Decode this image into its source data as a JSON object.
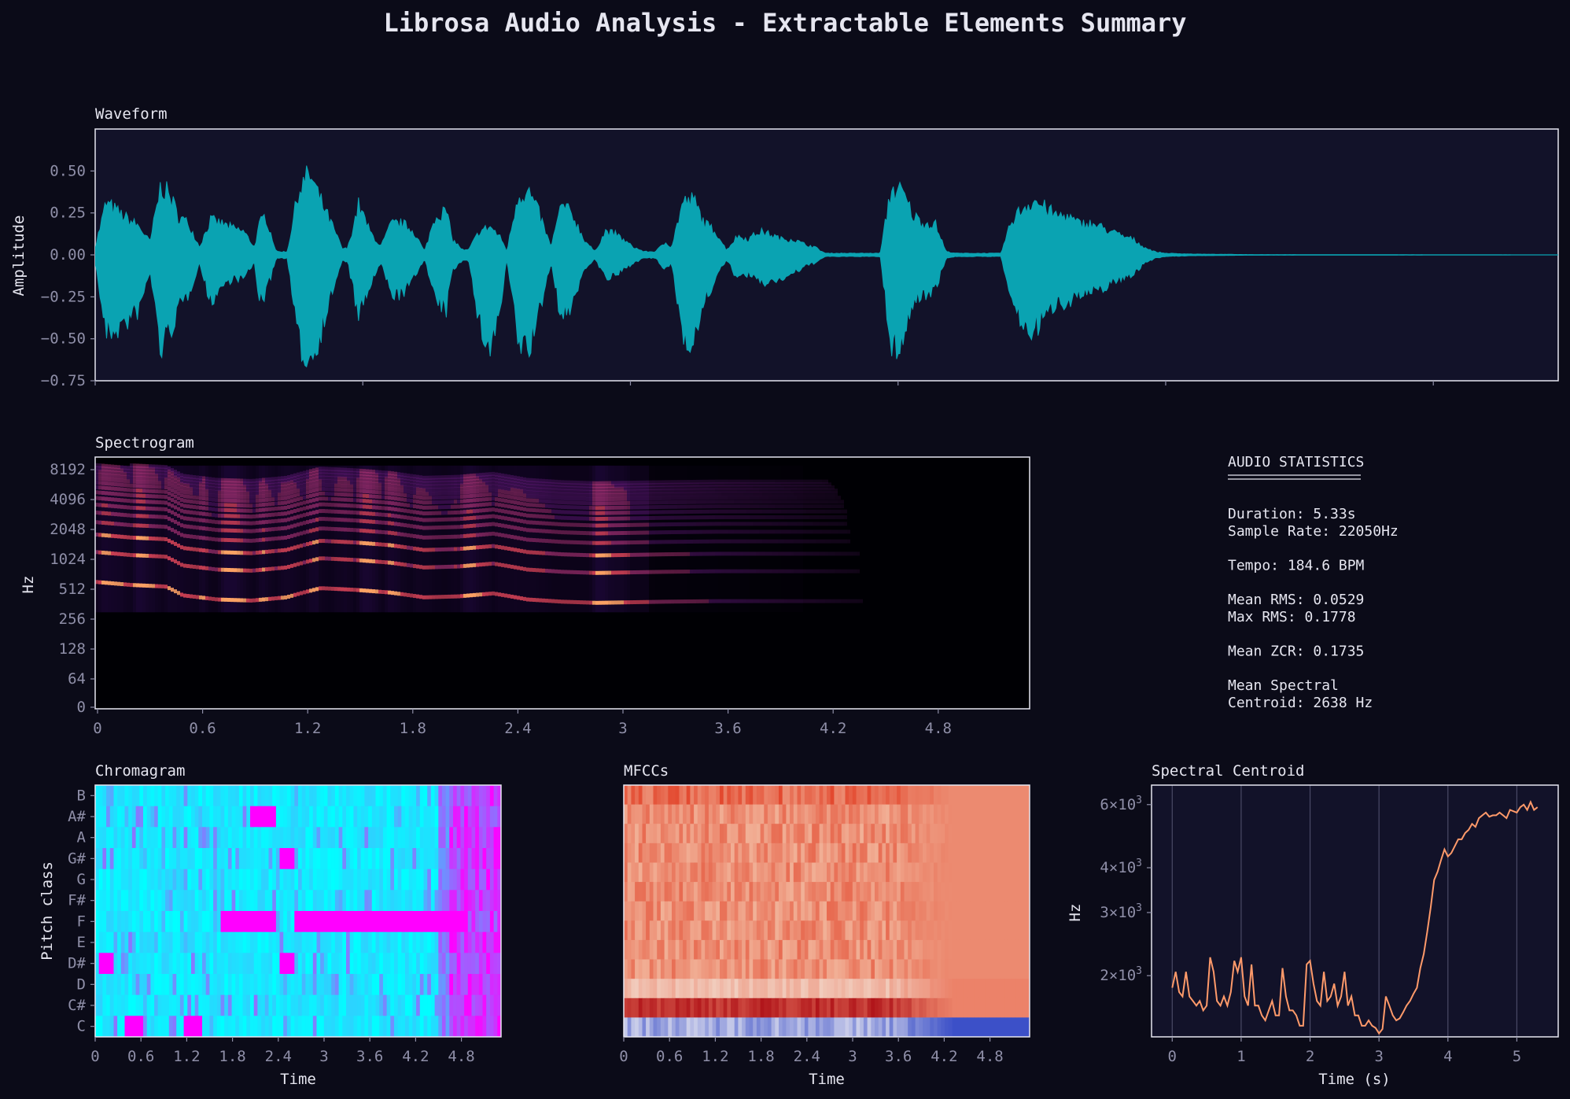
{
  "title": "Librosa Audio Analysis - Extractable Elements Summary",
  "colors": {
    "background": "#0b0b18",
    "panel": "#121229",
    "text": "#e6e6f0",
    "tick_text": "#8f8fa8",
    "waveform": "#0aa3b2",
    "centroid_line": "#ff9a6a"
  },
  "statistics": {
    "heading": "AUDIO STATISTICS",
    "lines": [
      "Duration: 5.33s",
      "Sample Rate: 22050Hz",
      "",
      "Tempo: 184.6 BPM",
      "",
      "Mean RMS: 0.0529",
      "Max RMS: 0.1778",
      "",
      "Mean ZCR: 0.1735",
      "",
      "Mean Spectral",
      "Centroid: 2638 Hz"
    ]
  },
  "chart_data": [
    {
      "type": "area",
      "title": "Waveform",
      "xlabel": "",
      "ylabel": "Amplitude",
      "xlim": [
        0,
        5.33
      ],
      "ylim": [
        -0.75,
        0.75
      ],
      "yticks": [
        "0.50",
        "0.25",
        "0.00",
        "−0.25",
        "−0.50",
        "−0.75"
      ],
      "ytick_values": [
        0.5,
        0.25,
        0,
        -0.25,
        -0.5,
        -0.75
      ],
      "xtick_values": [
        0,
        0.975,
        1.95,
        2.925,
        3.9,
        4.875
      ],
      "envelope": {
        "t": [
          0,
          0.04,
          0.1,
          0.16,
          0.2,
          0.24,
          0.28,
          0.3,
          0.34,
          0.38,
          0.42,
          0.46,
          0.5,
          0.54,
          0.58,
          0.6,
          0.62,
          0.66,
          0.7,
          0.74,
          0.78,
          0.82,
          0.86,
          0.9,
          0.92,
          0.96,
          1.0,
          1.04,
          1.08,
          1.12,
          1.16,
          1.2,
          1.24,
          1.28,
          1.3,
          1.34,
          1.36,
          1.4,
          1.44,
          1.48,
          1.5,
          1.54,
          1.58,
          1.62,
          1.66,
          1.7,
          1.74,
          1.78,
          1.82,
          1.86,
          1.9,
          1.92,
          1.96,
          2.0,
          2.04,
          2.08,
          2.1,
          2.14,
          2.18,
          2.22,
          2.26,
          2.3,
          2.34,
          2.38,
          2.42,
          2.46,
          2.5,
          2.54,
          2.58,
          2.62,
          2.66,
          2.7,
          2.74,
          2.78,
          2.82,
          2.86,
          2.9,
          2.94,
          2.98,
          3.02,
          3.06,
          3.1,
          3.14,
          3.18,
          3.22,
          3.26,
          3.3,
          3.34,
          3.38,
          3.42,
          3.46,
          3.5,
          3.54,
          3.58,
          3.62,
          3.66,
          3.7,
          3.74,
          3.78,
          3.82,
          3.86,
          3.9,
          4.0,
          4.2,
          4.6,
          5.33
        ],
        "max": [
          0.05,
          0.33,
          0.25,
          0.18,
          0.08,
          0.45,
          0.35,
          0.25,
          0.2,
          0.05,
          0.22,
          0.2,
          0.17,
          0.15,
          0.05,
          0.2,
          0.25,
          0.02,
          0.02,
          0.4,
          0.52,
          0.35,
          0.2,
          0.04,
          0.04,
          0.32,
          0.15,
          0.05,
          0.2,
          0.2,
          0.15,
          0.02,
          0.25,
          0.28,
          0.1,
          0.03,
          0.03,
          0.15,
          0.18,
          0.1,
          0.02,
          0.38,
          0.4,
          0.25,
          0.05,
          0.32,
          0.25,
          0.1,
          0.02,
          0.15,
          0.13,
          0.1,
          0.05,
          0.02,
          0.02,
          0.08,
          0.05,
          0.33,
          0.35,
          0.2,
          0.15,
          0.03,
          0.12,
          0.1,
          0.15,
          0.13,
          0.1,
          0.1,
          0.07,
          0.05,
          0.01,
          0.01,
          0.01,
          0.01,
          0.01,
          0.01,
          0.42,
          0.4,
          0.25,
          0.2,
          0.2,
          0.02,
          0.01,
          0.01,
          0.01,
          0.01,
          0.01,
          0.22,
          0.3,
          0.35,
          0.3,
          0.25,
          0.25,
          0.2,
          0.2,
          0.18,
          0.15,
          0.12,
          0.1,
          0.05,
          0.02,
          0.01,
          0.005,
          0.002,
          0.001,
          0
        ],
        "min": [
          -0.05,
          -0.5,
          -0.45,
          -0.35,
          -0.1,
          -0.6,
          -0.45,
          -0.35,
          -0.25,
          -0.05,
          -0.3,
          -0.2,
          -0.15,
          -0.15,
          -0.05,
          -0.3,
          -0.25,
          -0.02,
          -0.02,
          -0.55,
          -0.68,
          -0.5,
          -0.25,
          -0.04,
          -0.04,
          -0.4,
          -0.2,
          -0.05,
          -0.25,
          -0.25,
          -0.15,
          -0.02,
          -0.3,
          -0.35,
          -0.1,
          -0.03,
          -0.03,
          -0.45,
          -0.6,
          -0.3,
          -0.02,
          -0.55,
          -0.6,
          -0.35,
          -0.05,
          -0.42,
          -0.3,
          -0.1,
          -0.02,
          -0.15,
          -0.13,
          -0.1,
          -0.05,
          -0.02,
          -0.02,
          -0.1,
          -0.05,
          -0.5,
          -0.55,
          -0.3,
          -0.15,
          -0.03,
          -0.15,
          -0.12,
          -0.18,
          -0.17,
          -0.15,
          -0.12,
          -0.08,
          -0.05,
          -0.01,
          -0.01,
          -0.01,
          -0.01,
          -0.01,
          -0.01,
          -0.6,
          -0.55,
          -0.3,
          -0.25,
          -0.22,
          -0.02,
          -0.01,
          -0.01,
          -0.01,
          -0.01,
          -0.01,
          -0.3,
          -0.45,
          -0.48,
          -0.4,
          -0.3,
          -0.3,
          -0.25,
          -0.25,
          -0.22,
          -0.18,
          -0.15,
          -0.12,
          -0.06,
          -0.02,
          -0.01,
          -0.005,
          -0.002,
          -0.001,
          0
        ]
      }
    },
    {
      "type": "heatmap",
      "title": "Spectrogram",
      "xlabel": "",
      "ylabel": "Hz",
      "xlim": [
        0,
        5.33
      ],
      "y_scale": "log",
      "xticks": [
        "0",
        "0.6",
        "1.2",
        "1.8",
        "2.4",
        "3",
        "3.6",
        "4.2",
        "4.8"
      ],
      "yticks": [
        "8192",
        "4096",
        "2048",
        "1024",
        "512",
        "256",
        "128",
        "64",
        "0"
      ],
      "colormap": "magma",
      "fundamental_hz": {
        "t": [
          0.0,
          0.2,
          0.4,
          0.5,
          0.7,
          0.9,
          1.1,
          1.3,
          1.5,
          1.7,
          1.9,
          2.1,
          2.3,
          2.5,
          2.7,
          2.9,
          3.1,
          3.3,
          3.6,
          3.9,
          4.2,
          4.5
        ],
        "f": [
          600,
          560,
          540,
          440,
          400,
          390,
          420,
          520,
          500,
          470,
          420,
          430,
          460,
          400,
          380,
          370,
          375,
          380,
          385,
          385,
          385,
          385
        ]
      },
      "energy_end_s": 4.6
    },
    {
      "type": "heatmap",
      "title": "Chromagram",
      "xlabel": "Time",
      "ylabel": "Pitch class",
      "xticks": [
        "0",
        "0.6",
        "1.2",
        "1.8",
        "2.4",
        "3",
        "3.6",
        "4.2",
        "4.8"
      ],
      "categories": [
        "B",
        "A#",
        "A",
        "G#",
        "G",
        "F#",
        "F",
        "E",
        "D#",
        "D",
        "C#",
        "C"
      ],
      "colormap": "cool",
      "high_bins": [
        {
          "pitch": "F",
          "from": 2.55,
          "to": 4.85
        },
        {
          "pitch": "F",
          "from": 1.6,
          "to": 2.3
        },
        {
          "pitch": "A#",
          "from": 2.0,
          "to": 2.3
        },
        {
          "pitch": "D#",
          "from": 0.0,
          "to": 0.2
        },
        {
          "pitch": "D#",
          "from": 2.35,
          "to": 2.55
        },
        {
          "pitch": "G#",
          "from": 2.35,
          "to": 2.55
        },
        {
          "pitch": "C",
          "from": 0.35,
          "to": 0.55
        },
        {
          "pitch": "C",
          "from": 1.1,
          "to": 1.35
        }
      ]
    },
    {
      "type": "heatmap",
      "title": "MFCCs",
      "xlabel": "Time",
      "xticks": [
        "0",
        "0.6",
        "1.2",
        "1.8",
        "2.4",
        "3",
        "3.6",
        "4.2",
        "4.8"
      ],
      "colormap": "coolwarm",
      "n_coefficients": 13
    },
    {
      "type": "line",
      "title": "Spectral Centroid",
      "xlabel": "Time (s)",
      "ylabel": "Hz",
      "y_scale": "log",
      "xlim": [
        -0.3,
        5.6
      ],
      "ylim": [
        1350,
        6800
      ],
      "xticks": [
        "0",
        "1",
        "2",
        "3",
        "4",
        "5"
      ],
      "xtick_values": [
        0,
        1,
        2,
        3,
        4,
        5
      ],
      "yticks": [
        {
          "base": "2",
          "value": 2000
        },
        {
          "base": "3",
          "value": 3000
        },
        {
          "base": "4",
          "value": 4000
        },
        {
          "base": "6",
          "value": 6000
        }
      ],
      "grid": true,
      "x": [
        0.0,
        0.05,
        0.1,
        0.15,
        0.2,
        0.25,
        0.3,
        0.35,
        0.4,
        0.45,
        0.5,
        0.55,
        0.6,
        0.65,
        0.7,
        0.75,
        0.8,
        0.85,
        0.9,
        0.95,
        1.0,
        1.05,
        1.1,
        1.15,
        1.2,
        1.25,
        1.3,
        1.35,
        1.4,
        1.45,
        1.5,
        1.55,
        1.6,
        1.65,
        1.7,
        1.75,
        1.8,
        1.85,
        1.9,
        1.95,
        2.0,
        2.05,
        2.1,
        2.15,
        2.2,
        2.25,
        2.3,
        2.35,
        2.4,
        2.45,
        2.5,
        2.55,
        2.6,
        2.65,
        2.7,
        2.75,
        2.8,
        2.85,
        2.9,
        2.95,
        3.0,
        3.05,
        3.1,
        3.15,
        3.2,
        3.25,
        3.3,
        3.35,
        3.4,
        3.45,
        3.5,
        3.55,
        3.6,
        3.65,
        3.7,
        3.75,
        3.8,
        3.85,
        3.9,
        3.95,
        4.0,
        4.05,
        4.1,
        4.15,
        4.2,
        4.25,
        4.3,
        4.35,
        4.4,
        4.45,
        4.5,
        4.55,
        4.6,
        4.65,
        4.7,
        4.75,
        4.8,
        4.85,
        4.9,
        4.95,
        5.0,
        5.05,
        5.1,
        5.15,
        5.2,
        5.25,
        5.3
      ],
      "y": [
        1850,
        2050,
        1800,
        1750,
        2050,
        1750,
        1700,
        1650,
        1700,
        1600,
        1650,
        2250,
        2050,
        1700,
        1650,
        1750,
        1650,
        1800,
        2200,
        2050,
        2250,
        1750,
        1650,
        2150,
        1650,
        1650,
        1550,
        1500,
        1600,
        1700,
        1550,
        1550,
        2100,
        1750,
        1600,
        1600,
        1550,
        1450,
        1450,
        2150,
        2200,
        1900,
        1700,
        1650,
        2050,
        1700,
        1750,
        1900,
        1650,
        1750,
        2050,
        1650,
        1750,
        1550,
        1550,
        1450,
        1450,
        1500,
        1450,
        1430,
        1380,
        1420,
        1750,
        1650,
        1550,
        1500,
        1520,
        1580,
        1650,
        1700,
        1780,
        1850,
        2100,
        2300,
        2650,
        3100,
        3700,
        3900,
        4200,
        4500,
        4300,
        4400,
        4600,
        4800,
        4800,
        5000,
        5100,
        5300,
        5200,
        5500,
        5600,
        5700,
        5550,
        5600,
        5600,
        5700,
        5600,
        5500,
        5800,
        5750,
        5700,
        5900,
        6000,
        5800,
        6100,
        5800,
        5900
      ]
    }
  ]
}
